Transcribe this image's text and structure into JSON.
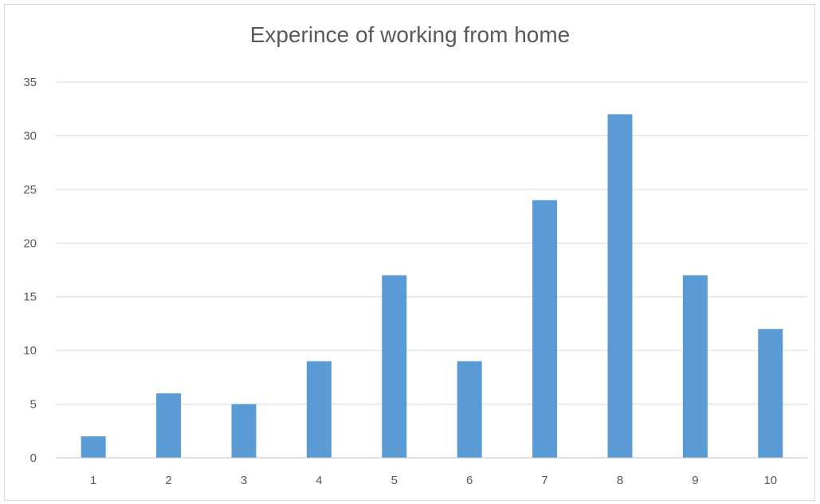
{
  "chart_data": {
    "type": "bar",
    "title": "Experince of working from home",
    "xlabel": "",
    "ylabel": "",
    "categories": [
      "1",
      "2",
      "3",
      "4",
      "5",
      "6",
      "7",
      "8",
      "9",
      "10"
    ],
    "values": [
      2,
      6,
      5,
      9,
      17,
      9,
      24,
      32,
      17,
      12
    ],
    "ylim": [
      0,
      35
    ],
    "yticks": [
      "0",
      "5",
      "10",
      "15",
      "20",
      "25",
      "30",
      "35"
    ],
    "grid": true,
    "legend": "none"
  },
  "colors": {
    "bar": "#5b9bd5",
    "grid": "#d9d9d9",
    "axis": "#bfbfbf",
    "text": "#595959"
  }
}
